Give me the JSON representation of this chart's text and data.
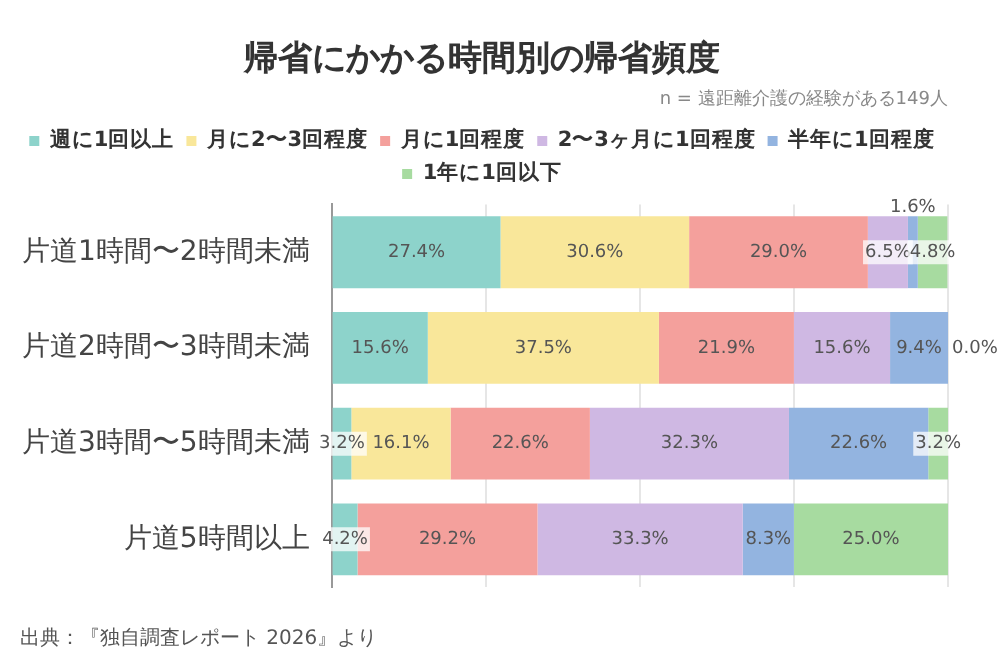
{
  "chart_data": {
    "type": "bar",
    "orientation": "horizontal",
    "stacked": true,
    "title": "帰省にかかる時間別の帰省頻度",
    "subtitle": "n = 遠距離介護の経験がある149人",
    "annotations": [
      "出典：『独自調査レポート 2026』より"
    ],
    "categories": [
      "片道1時間〜2時間未満",
      "片道2時間〜3時間未満",
      "片道3時間〜5時間未満",
      "片道5時間以上"
    ],
    "series": [
      {
        "name": "週に1回以上",
        "color": "#8dd3cb",
        "values": [
          27.4,
          15.6,
          3.2,
          4.2
        ],
        "value_labels": [
          "27.4%",
          "15.6%",
          "3.2%",
          "4.2%"
        ]
      },
      {
        "name": "月に2〜3回程度",
        "color": "#f9e79a",
        "values": [
          30.6,
          37.5,
          16.1,
          0
        ],
        "value_labels": [
          "30.6%",
          "37.5%",
          "16.1%",
          null
        ]
      },
      {
        "name": "月に1回程度",
        "color": "#f4a09c",
        "values": [
          29.0,
          21.9,
          22.6,
          29.2
        ],
        "value_labels": [
          "29.0%",
          "21.9%",
          "22.6%",
          "29.2%"
        ]
      },
      {
        "name": "2〜3ヶ月に1回程度",
        "color": "#cfb8e3",
        "values": [
          6.5,
          15.6,
          32.3,
          33.3
        ],
        "value_labels": [
          "6.5%",
          "15.6%",
          "32.3%",
          "33.3%"
        ]
      },
      {
        "name": "半年に1回程度",
        "color": "#93b4e0",
        "values": [
          1.6,
          9.4,
          22.6,
          8.3
        ],
        "value_labels": [
          "1.6%",
          "9.4%",
          "22.6%",
          "8.3%"
        ]
      },
      {
        "name": "1年に1回以下",
        "color": "#a7dba0",
        "values": [
          4.8,
          0.0,
          3.2,
          25.0
        ],
        "value_labels": [
          "4.8%",
          "0.0%",
          "3.2%",
          "25.0%"
        ]
      }
    ],
    "xlim": [
      0,
      100
    ],
    "xticks": [
      {
        "value": 0,
        "label": null
      },
      {
        "value": 25,
        "label": null
      },
      {
        "value": 50,
        "label": null
      },
      {
        "value": 75,
        "label": null
      },
      {
        "value": 100,
        "label": null
      }
    ],
    "grid": "x",
    "tick_labels": "y",
    "legend": "top"
  }
}
